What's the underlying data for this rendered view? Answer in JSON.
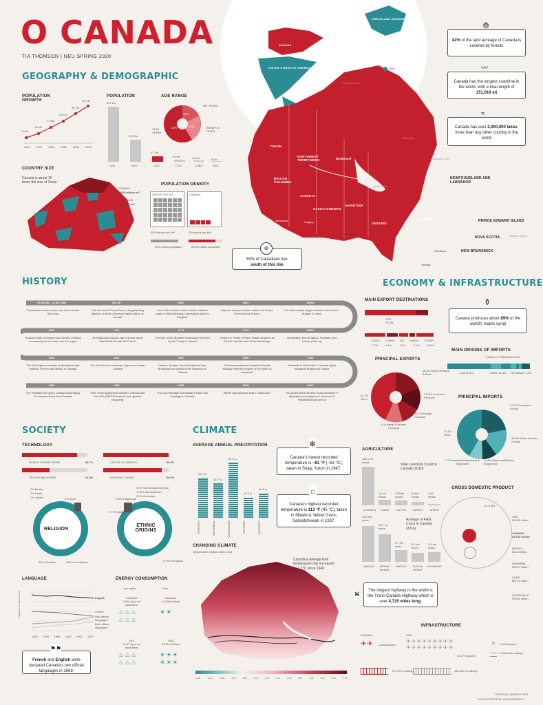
{
  "header": {
    "title": "O CANADA",
    "byline": "TIA THOMSON  |  NEU SPRING 2020"
  },
  "colors": {
    "red": "#d0202f",
    "teal": "#2b8d94",
    "dark": "#333333",
    "bg": "#f4f1ec"
  },
  "geo": {
    "section_title": "GEOGRAPHY & DEMOGRAPHIC",
    "pop_growth": {
      "title": "POPULATION GROWTH",
      "values": [
        "8.4M",
        "11.4M",
        "17.9M",
        "24.1M",
        "30.7M",
        "37.1M"
      ],
      "years": [
        "1920",
        "1940",
        "1960",
        "1980",
        "2000",
        "2020"
      ]
    },
    "population": {
      "title": "POPULATION",
      "bars": [
        {
          "value": "327.2m",
          "label": "USA"
        },
        {
          "value": "129.2m",
          "label": "MEX"
        },
        {
          "value": "37.1m",
          "label": "CAN"
        },
        {
          "value": "36.9m",
          "label": "CTR"
        },
        {
          "value": "11.3m",
          "label": "CUBA"
        },
        {
          "value": "6.4m",
          "label": "DEN"
        }
      ]
    },
    "age_range": {
      "title": "AGE RANGE",
      "slices": [
        {
          "label": "65+ YEARS",
          "value": "16%"
        },
        {
          "label": "15-64 YEARS",
          "value": "42%"
        },
        {
          "label": "UNDER 15 YEARS",
          "value": "22%"
        }
      ]
    },
    "country_size": {
      "title": "COUNTRY SIZE",
      "text": "Canada is about 15 times the size of Texas.",
      "canada_label": "CANADA",
      "canada_area": "3,855 million mi²",
      "texas_label": "TEXAS",
      "texas_area": "268,597 mi²"
    },
    "density": {
      "title": "POPULATION DENSITY",
      "us_label": "UNITED STATES",
      "ca_label": "CANADA",
      "us_value": "35.8 people per km²",
      "ca_value": "3.8 people per km²",
      "us_urban": "84% urban population",
      "ca_urban": "81.3% urban population"
    }
  },
  "map": {
    "greenland": "GREENLAND (DENMARK)",
    "canada": "CANADA",
    "usa": "UNITED STATES OF AMERICA",
    "alert": "Alert",
    "beaufort": "Beaufort Sea",
    "baffin": "Baffin Bay",
    "labrador": "Labrador Sea",
    "hudson": "Hudson Bay",
    "atlantic": "Atlantic Ocean",
    "provinces": [
      "YUKON",
      "NORTHWEST TERRITORIES",
      "NUNAVUT",
      "BRITISH COLUMBIA",
      "ALBERTA",
      "SASKATCHEWAN",
      "MANITOBA",
      "ONTARIO",
      "QUEBEC",
      "NEWFOUNDLAND AND LABRADOR",
      "PRINCE EDWARD ISLAND",
      "NOVA SCOTIA",
      "NEW BRUNSWICK"
    ],
    "cities": [
      "Vancouver",
      "Calgary",
      "Winnipeg",
      "Toronto",
      "Montreal"
    ],
    "note_pre": "50% of Canadians live",
    "note_bold": "south of this line"
  },
  "facts": [
    {
      "pre": "",
      "bold": "42%",
      "post": " of the land acreage of Canada is covered by forests"
    },
    {
      "pre": "Canada has the longest coastline in the world, with a total length of ",
      "bold": "151,019 mi",
      "post": ""
    },
    {
      "pre": "Canada has over ",
      "bold": "2,000,000 lakes",
      "post": ", more than any other country in the world"
    }
  ],
  "history": {
    "section_title": "HISTORY",
    "rows": [
      [
        {
          "year": "70,000 BC - C.AD 1000",
          "text": "Prehistoric hunters cross over into Canada from Asia"
        },
        {
          "year": "7th CE",
          "text": "The Council of Three Fires, a longstanding alliance of North American Native tribes, is formed"
        },
        {
          "year": "1497",
          "text": "John Cabot lands on the northern Atlantic coast of North America, claiming the land for England"
        },
        {
          "year": "1534",
          "text": "Explorer Jacques Cartier claims the Gaspé Peninsula for France"
        },
        {
          "year": "1600s",
          "text": "Fur trade mainly begins between the French, English & Dutch"
        }
      ],
      [
        {
          "year": "1670",
          "text": "Hudson's Bay Company was formed, creating a monopoly on fur trade over the region"
        },
        {
          "year": "1701",
          "text": "39 Indigenous groups sign a peace treaty near Montreal with the French"
        },
        {
          "year": "1713",
          "text": "The War of the Spanish Succession is ended by the Treaty of Utrecht"
        },
        {
          "year": "1763",
          "text": "Under the Treaty of Paris, Britain acquires all French colonies east of the Mississippi"
        },
        {
          "year": "1800s",
          "text": "Immigration from England, Scotland, and Ireland picks up"
        }
      ],
      [
        {
          "year": "1812",
          "text": "The US begins a decade of skirmishes with Indians, French, and British in Canada"
        },
        {
          "year": "1841",
          "text": "The Act of Union combines Upper and Lower Canada"
        },
        {
          "year": "1867",
          "text": "Ontario, Quebec, Nova Scotia and New Brunswick are united in the Dominion of Canada"
        },
        {
          "year": "1885",
          "text": "The transcontinental Canadian Pacific Railway, then the longest in the world, is completed"
        },
        {
          "year": "1914",
          "text": "Outbreak of World War I, Canada fights alongside Britain and France"
        }
      ],
      [
        {
          "year": "1982",
          "text": "The Patriation Act gives Canada sovereignty for independence from Canada"
        },
        {
          "year": "1988",
          "text": "Free Trade Agreement between Canada and the USA (NAFTA) leads to ever-greater prosperity"
        },
        {
          "year": "2005",
          "text": "The Civil Marriage Act legalizes same-sex marriage in Canada"
        },
        {
          "year": "2010",
          "text": "Winter Olympics are held in Vancouver"
        },
        {
          "year": "2017",
          "text": "The government decides to pay $3 billion in reparations to indigenous survivors of Residential School Era"
        }
      ]
    ]
  },
  "economy": {
    "section_title": "ECONOMY & INFRASTRUCTURE",
    "export_dest": {
      "title": "MAIN EXPORT DESTINATIONS",
      "usa": "USA 76.4%",
      "others": [
        {
          "label": "EURO",
          "value": "7.7%"
        },
        {
          "label": "CHINA",
          "value": "4.1%"
        },
        {
          "label": "UK",
          "value": "3.2%"
        },
        {
          "label": "JAPAN",
          "value": "2.1%"
        },
        {
          "label": "OTHER",
          "value": "6.4%"
        }
      ]
    },
    "maple": {
      "pre": "Canada produces about ",
      "bold": "85%",
      "post": " of the world's maple syrup"
    },
    "imports_origin": {
      "title": "MAIN ORIGINS OF IMPORTS",
      "items": [
        {
          "label": "USA",
          "value": "52.5%"
        },
        {
          "label": "CHINA",
          "value": "12.7%"
        },
        {
          "label": "EURO",
          "value": "11.8%"
        },
        {
          "label": "MEXICO",
          "value": "6.3%"
        },
        {
          "label": "JAPAN",
          "value": "3.2%"
        },
        {
          "label": "GERMANY",
          "value": "3.2%"
        },
        {
          "label": "OTHER",
          "value": "10.3%"
        }
      ]
    },
    "principal_exports": {
      "title": "PRINCIPAL EXPORTS",
      "slices": [
        {
          "label": "Other",
          "value": "42.7%"
        },
        {
          "label": "Motor Vehicles & Parts",
          "value": "18.4%"
        },
        {
          "label": "Consumer Products",
          "value": "14.2%"
        },
        {
          "label": "Energy Products",
          "value": "13.7%"
        },
        {
          "label": "Metal & Mineral Products",
          "value": "11%"
        }
      ]
    },
    "principal_imports": {
      "title": "PRINCIPAL IMPORTS",
      "slices": [
        {
          "label": "Other",
          "value": "37.4%"
        },
        {
          "label": "Consumer Goods",
          "value": "21.7%"
        },
        {
          "label": "Motor Vehicles & Parts",
          "value": "19.8%"
        },
        {
          "label": "Electronic/Electric Equipment",
          "value": "11.4%"
        },
        {
          "label": "Industrial Machinery & Equipment",
          "value": "9.7%"
        }
      ]
    }
  },
  "society": {
    "section_title": "SOCIETY",
    "tech_title": "TECHNOLOGY",
    "tech": [
      {
        "label": "MOBILE PHONE USERS",
        "value": "84.7%"
      },
      {
        "label": "COLOR TV OWNERS",
        "value": "99.6%"
      },
      {
        "label": "TELEPHONE USERS",
        "value": "41.8%"
      },
      {
        "label": "INTERNET USERS",
        "value": "89.8%"
      }
    ],
    "religion": {
      "title": "RELIGION",
      "items": [
        "3% Muslim",
        "1% Hindu",
        "1% Jewish",
        "5% other",
        "69% Christian",
        "24% non-religious"
      ]
    },
    "ethnic": {
      "title": "ETHNIC ORIGINS",
      "items": [
        "5.3% Sub-Saharan African",
        "1.3% Latin American",
        "0.3% Oceanian",
        "4.9% Indigenous",
        "17.7% Asian",
        "72.9% European"
      ]
    },
    "language": {
      "title": "LANGUAGE",
      "legend": [
        "English",
        "French",
        "Non-official languages",
        "Both official languages"
      ],
      "years": [
        "1900",
        "1940",
        "1960",
        "1980",
        "2000",
        "2020"
      ],
      "ylabel": "PERCENT OF POPULATION"
    },
    "note": {
      "b1": "French",
      "mid": " and ",
      "b2": "English",
      "post": " were declared Canada's two official languages in 1969."
    },
    "energy": {
      "title": "ENERGY CONSUMPTION",
      "per_capita": "per capita",
      "total": "total",
      "items": [
        {
          "label": "CANADA",
          "value": "7,604 kg of oil equivalent"
        },
        {
          "label": "CANADA",
          "value": "2,019m kWh/yr"
        },
        {
          "label": "USA",
          "value": "6,797 kg of oil equivalent"
        },
        {
          "label": "USA",
          "value": "3,911m kWh/yr"
        }
      ]
    }
  },
  "climate": {
    "section_title": "CLIMATE",
    "precip": {
      "title": "AVERAGE ANNUAL PRECIPITATION",
      "values": [
        {
          "v": "39.4 in",
          "c": "TORONTO"
        },
        {
          "v": "32.7 in",
          "c": "MONTREAL"
        },
        {
          "v": "57.2 in",
          "c": "VANCOUVER"
        },
        {
          "v": "16.3 in",
          "c": "CALGARY"
        },
        {
          "v": "20.8 in",
          "c": "WINNIPEG"
        }
      ]
    },
    "low": {
      "pre": "Canada's lowest recorded temperature is ",
      "bold": "−81 °F",
      "post": " (−63 °C), taken in Snag, Yukon in 1947."
    },
    "high": {
      "pre": "Canada's highest recorded temperature is ",
      "bold": "113 °F",
      "post": " (45 °C), taken in Midale & Yellow Grass Saskatchewan in 1937."
    },
    "change": {
      "title": "CHANGING CLIMATE",
      "subtitle": "Temperature change since 1948",
      "note": "Canada's average land temperature has increased by 1.7°C since 1948"
    },
    "scale": [
      "-1.5",
      "-1.0",
      "-0.5",
      "0.0",
      "0.5",
      "1.0",
      "1.5",
      "2.0",
      "2.5",
      "3.0",
      "3.5",
      "4.0",
      "4.5",
      "7.5"
    ],
    "highway": {
      "pre": "The longest highway in the world is the Trans-Canada Highway which is over ",
      "bold": "4,725 miles long."
    }
  },
  "agriculture": {
    "title": "AGRICULTURE",
    "livestock_title": "Total Livestock Count in Canada (2016)",
    "livestock": [
      {
        "v": "145.5 mil heads",
        "l": "CHICKEN"
      },
      {
        "v": "14 mil heads",
        "l": "HOGS"
      },
      {
        "v": "12.5mil heads",
        "l": "CATTLE"
      },
      {
        "v": "8.4mil heads",
        "l": "TURKEY"
      },
      {
        "v": "1mil heads",
        "l": "SHEEP"
      }
    ],
    "crops_title": "Acreage of Field Crops in Canada (2016)",
    "crops": [
      {
        "v": "20.6 mil acres",
        "l": "CANOLA"
      },
      {
        "v": "15.7 mil acres",
        "l": "SPRING WHEAT"
      },
      {
        "v": "6.7 mil acres",
        "l": "BARLEY"
      },
      {
        "v": "5.1 mil acres",
        "l": "DURUM WHEAT"
      },
      {
        "v": "5.4 mil acres",
        "l": "SOYBEANS"
      }
    ]
  },
  "gdp": {
    "title": "GROSS DOMESTIC PRODUCT",
    "unit": "(in USD)",
    "items": [
      {
        "l": "USA",
        "v": "$19.39 trillion"
      },
      {
        "l": "CANADA",
        "v": "$1.653 trillion"
      },
      {
        "l": "MEXICO",
        "v": "$1.15 trillion"
      },
      {
        "l": "DENMARK",
        "v": "$324.9 billion"
      },
      {
        "l": "CUBA",
        "v": "$87.13 billion"
      },
      {
        "l": "GUATEMALA",
        "v": "$75.62 billion"
      }
    ]
  },
  "infra": {
    "title": "INFRASTRUCTURE",
    "canada": "CANADA",
    "usa": "USA",
    "ca_air": "1,468 airports",
    "us_air": "15,079 airports",
    "ca_rail": "30,709 mi railway",
    "us_rail": "180,000 mi railway",
    "legend_air": "1,000 airports",
    "legend_rail": "1,000 miles railway"
  },
  "credits": {
    "typeface": "TYPEFACE: AVERCU PRO",
    "icons": "ICONS FROM THE NOUN PROJECT"
  }
}
